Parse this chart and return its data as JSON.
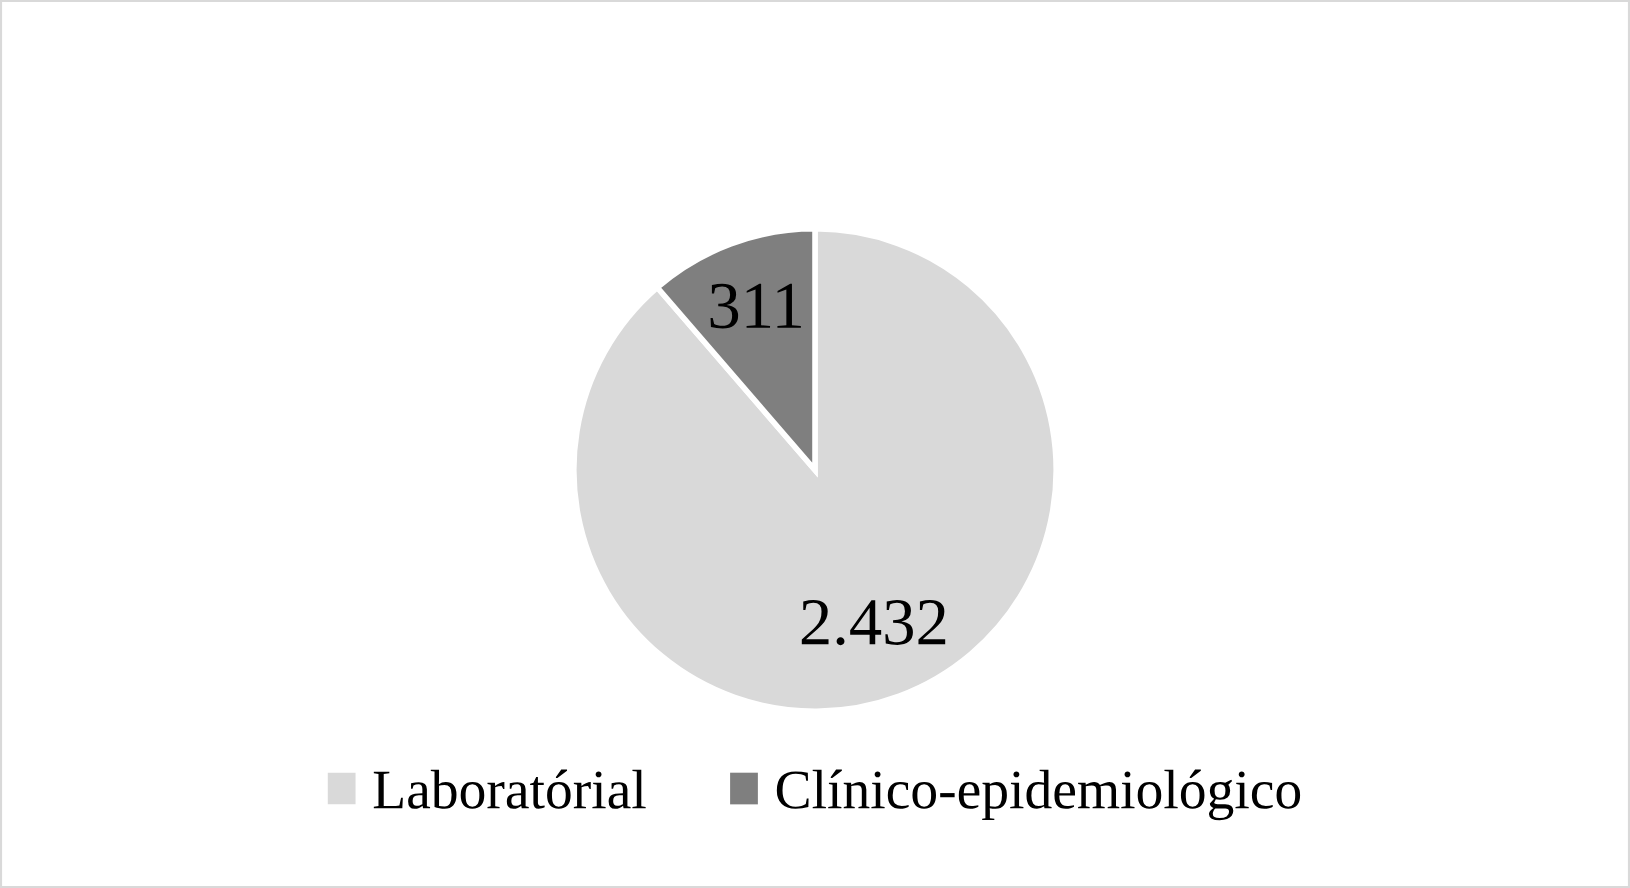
{
  "chart_data": {
    "type": "pie",
    "categories": [
      "Laboratórial",
      "Clínico-epidemiológico"
    ],
    "values": [
      2432,
      311
    ],
    "value_labels": [
      "2.432",
      "311"
    ],
    "colors": [
      "#d9d9d9",
      "#7f7f7f"
    ],
    "legend": "bottom"
  }
}
